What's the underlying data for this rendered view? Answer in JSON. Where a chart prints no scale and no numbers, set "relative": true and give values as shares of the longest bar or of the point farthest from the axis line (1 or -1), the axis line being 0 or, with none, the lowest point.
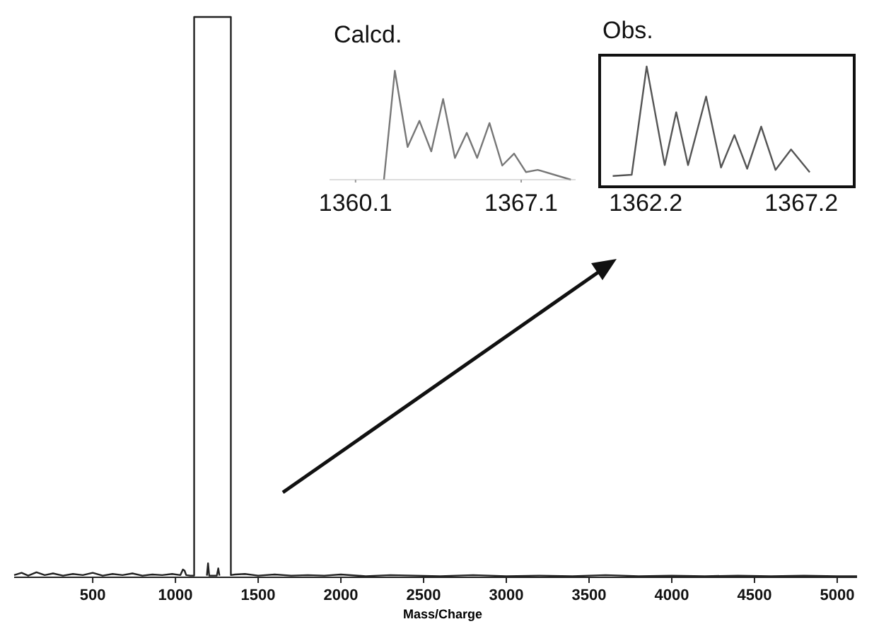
{
  "chart_data": [
    {
      "type": "line",
      "xlabel": "Mass/Charge",
      "relative": true,
      "xlim": [
        25,
        5120
      ],
      "xticks": [
        500,
        1000,
        1500,
        2000,
        2500,
        3000,
        3500,
        4000,
        4500,
        5000
      ],
      "tick_labels": "x",
      "series": [
        {
          "color": "#222222",
          "x": [
            25,
            70,
            110,
            160,
            210,
            260,
            320,
            380,
            440,
            500,
            560,
            620,
            680,
            740,
            800,
            860,
            920,
            980,
            1030,
            1045,
            1055,
            1065,
            1090,
            1113,
            1113,
            1335,
            1335,
            1360,
            1420,
            1500,
            1600,
            1700,
            1800,
            1900,
            2000,
            2150,
            2300,
            2450,
            2600,
            2800,
            3000,
            3200,
            3400,
            3600,
            3800,
            4000,
            4200,
            4400,
            4600,
            4800,
            5000,
            5120
          ],
          "values": [
            0.004,
            0.008,
            0.003,
            0.009,
            0.004,
            0.007,
            0.003,
            0.006,
            0.004,
            0.008,
            0.003,
            0.006,
            0.004,
            0.007,
            0.003,
            0.005,
            0.004,
            0.006,
            0.004,
            0.014,
            0.012,
            0.004,
            0.003,
            0.003,
            1,
            1,
            0.004,
            0.005,
            0.006,
            0.003,
            0.005,
            0.003,
            0.004,
            0.003,
            0.005,
            0.002,
            0.004,
            0.003,
            0.002,
            0.004,
            0.002,
            0.003,
            0.002,
            0.004,
            0.002,
            0.003,
            0.002,
            0.003,
            0.002,
            0.003,
            0.002,
            0.002
          ]
        },
        {
          "color": "#222222",
          "x": [
            1190,
            1197,
            1204,
            1250,
            1259,
            1266
          ],
          "values": [
            0.003,
            0.025,
            0.003,
            0.003,
            0.016,
            0.003
          ]
        }
      ]
    },
    {
      "type": "line",
      "title": "Calcd.",
      "relative": true,
      "xlim": [
        1359,
        1369.4
      ],
      "xticks": [
        1360.1,
        1367.1
      ],
      "tick_labels": "x",
      "series": [
        {
          "color": "#777777",
          "x": [
            1361.3,
            1361.76,
            1362.3,
            1362.8,
            1363.3,
            1363.8,
            1364.3,
            1364.8,
            1365.24,
            1365.76,
            1366.3,
            1366.8,
            1367.3,
            1367.8,
            1369.2
          ],
          "values": [
            0,
            1,
            0.3,
            0.54,
            0.26,
            0.74,
            0.2,
            0.43,
            0.2,
            0.52,
            0.13,
            0.24,
            0.07,
            0.09,
            0
          ]
        }
      ]
    },
    {
      "type": "line",
      "title": "Obs.",
      "relative": true,
      "xlim": [
        1360.72,
        1368.9
      ],
      "xticks": [
        1362.2,
        1367.2
      ],
      "tick_labels": "x",
      "series": [
        {
          "color": "#555555",
          "x": [
            1361.14,
            1361.75,
            1362.23,
            1362.81,
            1363.18,
            1363.56,
            1364.14,
            1364.62,
            1365.05,
            1365.46,
            1365.91,
            1366.37,
            1366.87,
            1367.47
          ],
          "values": [
            0.09,
            0.1,
            1,
            0.18,
            0.62,
            0.18,
            0.75,
            0.16,
            0.43,
            0.15,
            0.5,
            0.14,
            0.31,
            0.12
          ]
        }
      ]
    }
  ]
}
